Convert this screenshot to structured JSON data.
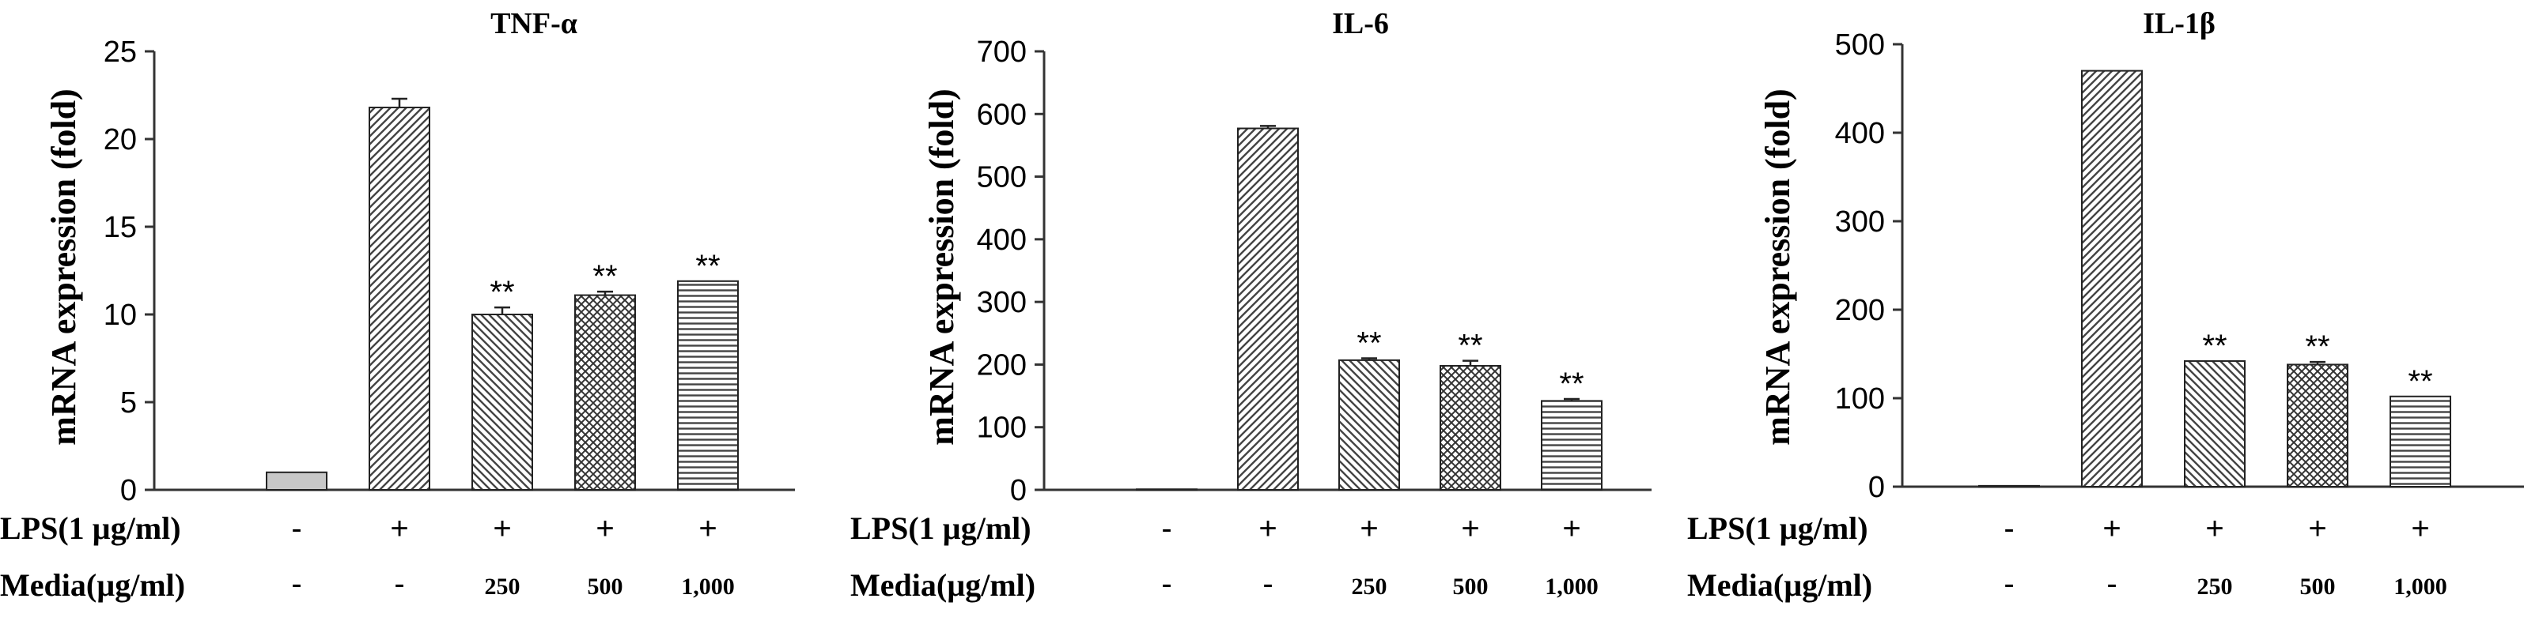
{
  "figure": {
    "row_labels": {
      "lps": "LPS(1 µg/ml)",
      "media": "Media(µg/ml)"
    }
  },
  "chart_data": [
    {
      "type": "bar",
      "title": "TNF-α",
      "ylabel": "mRNA expression (fold)",
      "xlabel": "",
      "ylim": [
        0,
        25
      ],
      "yticks": [
        0,
        5,
        10,
        15,
        20,
        25
      ],
      "categories": [
        "Control",
        "LPS",
        "LPS + Media 250",
        "LPS + Media 500",
        "LPS + Media 1,000"
      ],
      "values": [
        1.0,
        21.8,
        10.0,
        11.1,
        11.9
      ],
      "errors": [
        0,
        0.5,
        0.4,
        0.2,
        0
      ],
      "significance": [
        "",
        "",
        "**",
        "**",
        "**"
      ],
      "lps": [
        "-",
        "+",
        "+",
        "+",
        "+"
      ],
      "media": [
        "-",
        "-",
        "250",
        "500",
        "1,000"
      ],
      "patterns": [
        "solid-gray",
        "diag-fwd",
        "diag-back",
        "crosshatch",
        "horizontal"
      ]
    },
    {
      "type": "bar",
      "title": "IL-6",
      "ylabel": "mRNA expression (fold)",
      "xlabel": "",
      "ylim": [
        0,
        700
      ],
      "yticks": [
        0,
        100,
        200,
        300,
        400,
        500,
        600,
        700
      ],
      "categories": [
        "Control",
        "LPS",
        "LPS + Media 250",
        "LPS + Media 500",
        "LPS + Media 1,000"
      ],
      "values": [
        1,
        577,
        207,
        198,
        142
      ],
      "errors": [
        0,
        4,
        3,
        8,
        3
      ],
      "significance": [
        "",
        "",
        "**",
        "**",
        "**"
      ],
      "lps": [
        "-",
        "+",
        "+",
        "+",
        "+"
      ],
      "media": [
        "-",
        "-",
        "250",
        "500",
        "1,000"
      ],
      "patterns": [
        "solid-gray",
        "diag-fwd",
        "diag-back",
        "crosshatch",
        "horizontal"
      ]
    },
    {
      "type": "bar",
      "title": "IL-1β",
      "ylabel": "mRNA expression (fold)",
      "xlabel": "",
      "ylim": [
        0,
        500
      ],
      "yticks": [
        0,
        100,
        200,
        300,
        400,
        500
      ],
      "categories": [
        "Control",
        "LPS",
        "LPS + Media 250",
        "LPS + Media 500",
        "LPS + Media 1,000"
      ],
      "values": [
        1,
        470,
        142,
        138,
        102
      ],
      "errors": [
        0,
        0,
        0,
        3,
        0
      ],
      "significance": [
        "",
        "",
        "**",
        "**",
        "**"
      ],
      "lps": [
        "-",
        "+",
        "+",
        "+",
        "+"
      ],
      "media": [
        "-",
        "-",
        "250",
        "500",
        "1,000"
      ],
      "patterns": [
        "solid-gray",
        "diag-fwd",
        "diag-back",
        "crosshatch",
        "horizontal"
      ]
    }
  ]
}
